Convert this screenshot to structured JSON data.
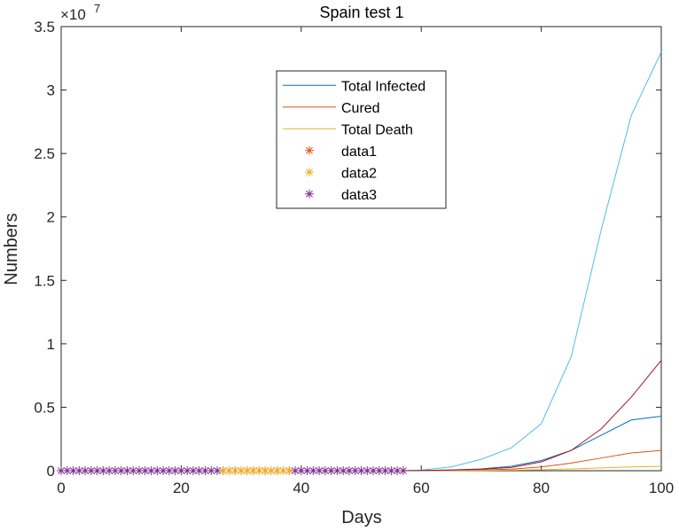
{
  "chart_data": {
    "type": "line",
    "title": "Spain test 1",
    "xlabel": "Days",
    "ylabel": "Numbers",
    "xlim": [
      0,
      100
    ],
    "ylim": [
      0,
      3.5
    ],
    "y_exponent_label": "×10",
    "y_exponent_power": "7",
    "xticks": [
      "0",
      "20",
      "40",
      "60",
      "80",
      "100"
    ],
    "yticks": [
      "0",
      "0.5",
      "1",
      "1.5",
      "2",
      "2.5",
      "3",
      "3.5"
    ],
    "grid": false,
    "legend_position": "top-center",
    "series": [
      {
        "name": "Total Infected",
        "kind": "line",
        "color": "#0072BD",
        "x": [
          57,
          60,
          65,
          70,
          75,
          80,
          85,
          90,
          95,
          100
        ],
        "y": [
          0,
          0.002,
          0.006,
          0.014,
          0.035,
          0.08,
          0.16,
          0.28,
          0.4,
          0.43
        ]
      },
      {
        "name": "Cured",
        "kind": "line",
        "color": "#D95319",
        "x": [
          57,
          60,
          65,
          70,
          75,
          80,
          85,
          90,
          95,
          100
        ],
        "y": [
          0,
          0.001,
          0.003,
          0.006,
          0.012,
          0.03,
          0.06,
          0.1,
          0.14,
          0.16
        ]
      },
      {
        "name": "Total Death",
        "kind": "line",
        "color": "#EDB120",
        "x": [
          57,
          60,
          65,
          70,
          75,
          80,
          85,
          90,
          95,
          100
        ],
        "y": [
          0,
          0.0005,
          0.001,
          0.002,
          0.004,
          0.008,
          0.014,
          0.022,
          0.03,
          0.035
        ]
      },
      {
        "name": "data1",
        "kind": "marker",
        "color": "#D95319",
        "x": [
          27,
          28,
          29,
          30,
          31,
          32,
          33,
          34,
          35,
          36,
          37,
          38
        ],
        "y": [
          0,
          0,
          0,
          0,
          0,
          0,
          0,
          0,
          0,
          0,
          0,
          0
        ]
      },
      {
        "name": "data2",
        "kind": "marker",
        "color": "#EDB120",
        "x": [
          27,
          28,
          29,
          30,
          31,
          32,
          33,
          34,
          35,
          36,
          37,
          38
        ],
        "y": [
          0,
          0,
          0,
          0,
          0,
          0,
          0,
          0,
          0,
          0,
          0,
          0
        ]
      },
      {
        "name": "data3",
        "kind": "marker",
        "color": "#7E2F8E",
        "x": [
          0,
          1,
          2,
          3,
          4,
          5,
          6,
          7,
          8,
          9,
          10,
          11,
          12,
          13,
          14,
          15,
          16,
          17,
          18,
          19,
          20,
          21,
          22,
          23,
          24,
          25,
          26,
          39,
          40,
          41,
          42,
          43,
          44,
          45,
          46,
          47,
          48,
          49,
          50,
          51,
          52,
          53,
          54,
          55,
          56,
          57
        ],
        "y": [
          0,
          0,
          0,
          0,
          0,
          0,
          0,
          0,
          0,
          0,
          0,
          0,
          0,
          0,
          0,
          0,
          0,
          0,
          0,
          0,
          0,
          0,
          0,
          0,
          0,
          0,
          0,
          0,
          0,
          0,
          0,
          0,
          0,
          0,
          0,
          0,
          0,
          0,
          0,
          0,
          0,
          0,
          0,
          0,
          0,
          0
        ]
      },
      {
        "name": "",
        "kind": "line",
        "color": "#4DBEEE",
        "x": [
          57,
          60,
          65,
          70,
          75,
          80,
          85,
          90,
          95,
          100
        ],
        "y": [
          0,
          0.005,
          0.03,
          0.09,
          0.18,
          0.37,
          0.9,
          1.9,
          2.8,
          3.3
        ]
      },
      {
        "name": "",
        "kind": "line",
        "color": "#A2142F",
        "x": [
          57,
          60,
          65,
          70,
          75,
          80,
          85,
          90,
          95,
          100
        ],
        "y": [
          0,
          0.002,
          0.005,
          0.012,
          0.025,
          0.07,
          0.16,
          0.33,
          0.58,
          0.87
        ]
      }
    ]
  }
}
